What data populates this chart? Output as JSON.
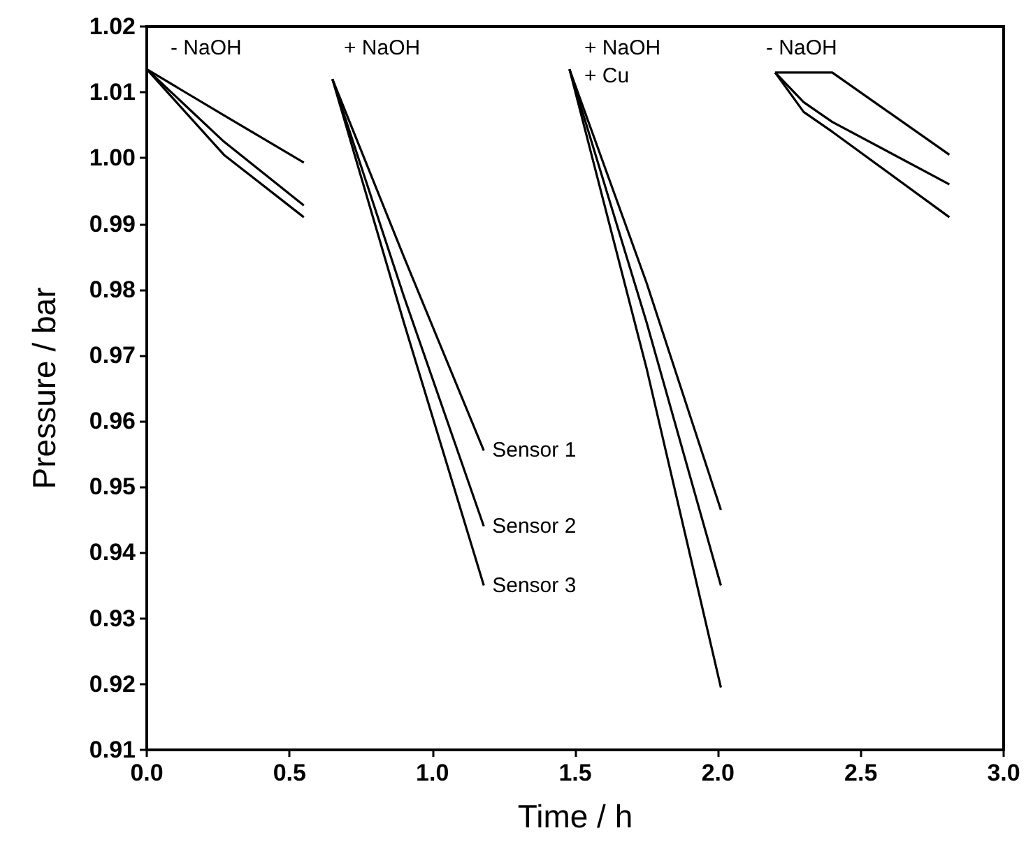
{
  "chart_data": {
    "type": "line",
    "xlabel": "Time / h",
    "ylabel": "Pressure / bar",
    "x": [
      0,
      0.27,
      0.55,
      0.6,
      0.65,
      0.9,
      1.18,
      1.3,
      1.48,
      1.75,
      2.01,
      2.1,
      2.2,
      2.3,
      2.4,
      2.81
    ],
    "series": [
      {
        "name": "Sensor 1",
        "color": "#000000",
        "values": [
          1.0135,
          1.0065,
          0.9993,
          null,
          1.012,
          0.985,
          0.9555,
          null,
          1.0135,
          0.981,
          0.9465,
          null,
          1.013,
          1.013,
          1.013,
          1.0005
        ]
      },
      {
        "name": "Sensor 2",
        "color": "#000000",
        "values": [
          1.0135,
          1.0025,
          0.9928,
          null,
          1.012,
          0.979,
          0.944,
          null,
          1.0135,
          0.975,
          0.935,
          null,
          1.013,
          1.0085,
          1.0055,
          0.996
        ]
      },
      {
        "name": "Sensor 3",
        "color": "#000000",
        "values": [
          1.0135,
          1.0005,
          0.991,
          null,
          1.012,
          0.975,
          0.935,
          null,
          1.0135,
          0.968,
          0.9195,
          null,
          1.013,
          1.007,
          1.004,
          0.991
        ]
      }
    ],
    "annotations": [
      "- NaOH",
      "+ NaOH",
      "+ NaOH",
      "+ Cu",
      "- NaOH"
    ],
    "xlim": [
      0,
      3
    ],
    "xticks": [
      {
        "value": 0,
        "label": "0.0"
      },
      0.5,
      {
        "value": 1,
        "label": "1.0"
      },
      1.5,
      {
        "value": 2,
        "label": "2.0"
      },
      2.5,
      {
        "value": 3,
        "label": "3.0"
      }
    ],
    "ylim": [
      0.91,
      1.02
    ],
    "yticks": [
      0.91,
      0.92,
      0.93,
      0.94,
      0.95,
      0.96,
      0.97,
      0.98,
      0.99,
      {
        "value": 1,
        "label": "1.00"
      },
      1.01,
      1.02
    ],
    "grid": false,
    "legend": false,
    "marker": "none",
    "line_style": "solid"
  }
}
